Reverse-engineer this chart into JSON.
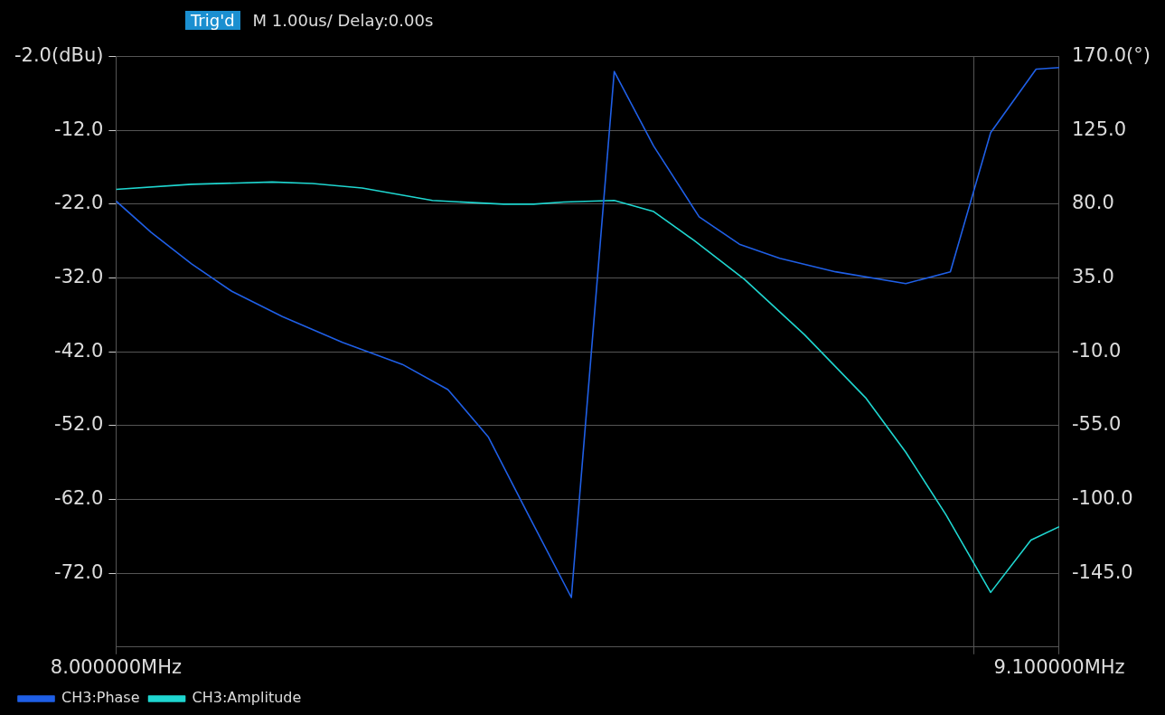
{
  "chart_data": {
    "type": "line",
    "annotations": [
      "Trig'd",
      "M 1.00us/  Delay:0.00s"
    ],
    "xlim": [
      8.0,
      9.1
    ],
    "xticks": [
      {
        "value": 8.0,
        "label": "8.000000MHz"
      },
      {
        "value": 9.0,
        "label": null
      },
      {
        "value": 9.1,
        "label": "9.100000MHz"
      }
    ],
    "ylim": [
      -82,
      -2
    ],
    "yticks": [
      {
        "value": -2,
        "label": "-2.0(dBu)"
      },
      {
        "value": -12,
        "label": "-12.0"
      },
      {
        "value": -22,
        "label": "-22.0"
      },
      {
        "value": -32,
        "label": "-32.0"
      },
      {
        "value": -42,
        "label": "-42.0"
      },
      {
        "value": -52,
        "label": "-52.0"
      },
      {
        "value": -62,
        "label": "-62.0"
      },
      {
        "value": -72,
        "label": "-72.0"
      }
    ],
    "y2lim": [
      -190,
      170
    ],
    "y2ticks": [
      {
        "value": 170,
        "label": "170.0(°)"
      },
      {
        "value": 125,
        "label": "125.0"
      },
      {
        "value": 80,
        "label": "80.0"
      },
      {
        "value": 35,
        "label": "35.0"
      },
      {
        "value": -10,
        "label": "-10.0"
      },
      {
        "value": -55,
        "label": "-55.0"
      },
      {
        "value": -100,
        "label": "-100.0"
      },
      {
        "value": -145,
        "label": "-145.0"
      }
    ],
    "grid": true,
    "legend": "bottom left",
    "marker": "none",
    "line_style": "solid",
    "series": [
      {
        "name": "CH3:Phase",
        "color": "#1f5fe6",
        "axis": "y2",
        "x": [
          8.0,
          8.041,
          8.088,
          8.135,
          8.194,
          8.264,
          8.334,
          8.387,
          8.434,
          8.481,
          8.531,
          8.581,
          8.627,
          8.68,
          8.727,
          8.774,
          8.839,
          8.921,
          8.973,
          9.02,
          9.073,
          9.1
        ],
        "values": [
          81.9,
          62.8,
          43.6,
          26.9,
          11.5,
          -4.3,
          -17.7,
          -33.0,
          -61.8,
          -109.6,
          -159.8,
          160.9,
          115.4,
          72.3,
          55.6,
          47.0,
          38.8,
          31.6,
          38.8,
          123.6,
          162.3,
          163.3
        ]
      },
      {
        "name": "CH3:Amplitude",
        "color": "#1fd6d0",
        "x": [
          8.0,
          8.088,
          8.182,
          8.229,
          8.287,
          8.369,
          8.452,
          8.487,
          8.522,
          8.581,
          8.627,
          8.674,
          8.733,
          8.803,
          8.874,
          8.921,
          8.968,
          9.02,
          9.067,
          9.1
        ],
        "values": [
          -20.0,
          -19.3,
          -19.0,
          -19.2,
          -19.8,
          -21.5,
          -22.0,
          -22.0,
          -21.7,
          -21.5,
          -23.0,
          -26.9,
          -32.2,
          -39.7,
          -48.2,
          -55.6,
          -64.1,
          -74.6,
          -67.5,
          -65.7
        ]
      }
    ]
  }
}
